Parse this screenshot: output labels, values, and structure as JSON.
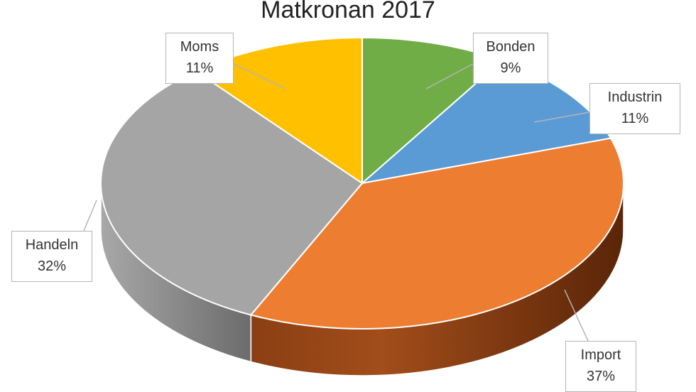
{
  "chart_data": {
    "type": "pie",
    "title": "Matkronan 2017",
    "categories": [
      "Bonden",
      "Industrin",
      "Import",
      "Handeln",
      "Moms"
    ],
    "values": [
      9,
      11,
      37,
      32,
      11
    ],
    "value_labels": [
      "9%",
      "11%",
      "37%",
      "32%",
      "11%"
    ],
    "colors": [
      "#70ad47",
      "#5b9bd5",
      "#ed7d31",
      "#a5a5a5",
      "#ffc000"
    ],
    "style": "3d",
    "start_angle_deg": 0,
    "direction": "clockwise",
    "legend": "none"
  }
}
